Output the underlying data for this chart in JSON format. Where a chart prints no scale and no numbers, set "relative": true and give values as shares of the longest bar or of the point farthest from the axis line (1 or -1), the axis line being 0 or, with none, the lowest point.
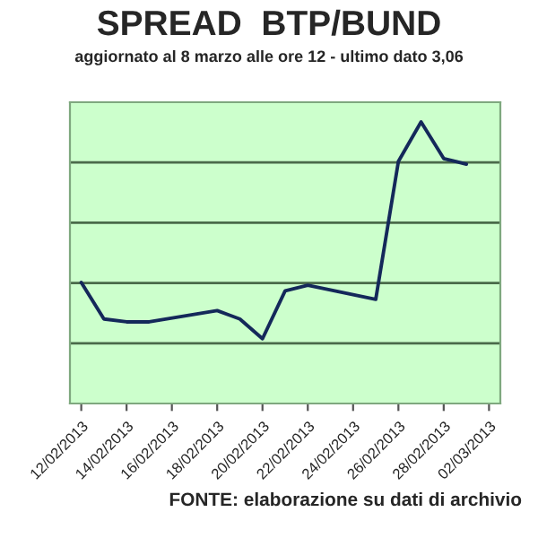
{
  "chart_data": {
    "type": "line",
    "title": "SPREAD  BTP/BUND",
    "subtitle": "aggiornato al 8 marzo alle ore 12 - ultimo dato 3,06",
    "x": [
      "2013-02-12",
      "2013-02-13",
      "2013-02-14",
      "2013-02-15",
      "2013-02-18",
      "2013-02-19",
      "2013-02-20",
      "2013-02-21",
      "2013-02-22",
      "2013-02-25",
      "2013-02-26",
      "2013-02-27",
      "2013-02-28",
      "2013-03-01"
    ],
    "series": [
      {
        "color": "#14285a",
        "values": [
          0.43,
          0.3,
          0.29,
          0.29,
          0.33,
          0.3,
          0.23,
          0.4,
          0.42,
          0.37,
          0.86,
          1,
          0.87,
          0.85
        ]
      }
    ],
    "relative": true,
    "xlim": [
      "2013-02-11T12:00",
      "2013-03-02T12:00"
    ],
    "xticks": [
      {
        "value": "2013-02-12",
        "label": "12/02/2013"
      },
      {
        "value": "2013-02-14",
        "label": "14/02/2013"
      },
      {
        "value": "2013-02-16",
        "label": "16/02/2013"
      },
      {
        "value": "2013-02-18",
        "label": "18/02/2013"
      },
      {
        "value": "2013-02-20",
        "label": "20/02/2013"
      },
      {
        "value": "2013-02-22",
        "label": "22/02/2013"
      },
      {
        "value": "2013-02-24",
        "label": "24/02/2013"
      },
      {
        "value": "2013-02-26",
        "label": "26/02/2013"
      },
      {
        "value": "2013-02-28",
        "label": "28/02/2013"
      },
      {
        "value": "2013-03-02",
        "label": "02/03/2013"
      }
    ],
    "tick_labels": "x",
    "grid": "y",
    "marker": "none",
    "line_style": "solid",
    "annotations": [
      "FONTE: elaborazione su dati di archivio"
    ]
  }
}
